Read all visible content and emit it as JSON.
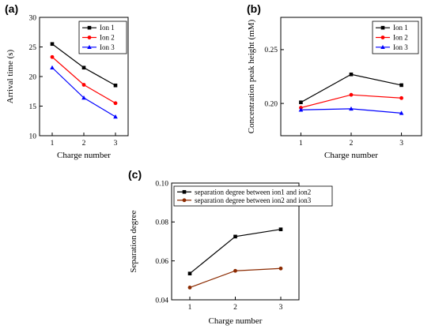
{
  "chart_data": [
    {
      "panel_label": "(a)",
      "type": "line",
      "x": [
        1,
        2,
        3
      ],
      "xticks": [
        "1",
        "2",
        "3"
      ],
      "yticks": [
        "10",
        "15",
        "20",
        "25",
        "30"
      ],
      "xlim": [
        0.6,
        3.4
      ],
      "ylim": [
        10,
        30
      ],
      "xlabel": "Charge number",
      "ylabel": "Arrival time (s)",
      "legend_position": "top-right",
      "series": [
        {
          "name": "Ion 1",
          "color": "#000000",
          "marker": "square",
          "values": [
            25.5,
            21.5,
            18.5
          ]
        },
        {
          "name": "Ion 2",
          "color": "#ff0000",
          "marker": "circle",
          "values": [
            23.3,
            18.6,
            15.5
          ]
        },
        {
          "name": "Ion 3",
          "color": "#0000ff",
          "marker": "triangle",
          "values": [
            21.5,
            16.4,
            13.2
          ]
        }
      ]
    },
    {
      "panel_label": "(b)",
      "type": "line",
      "x": [
        1,
        2,
        3
      ],
      "xticks": [
        "1",
        "2",
        "3"
      ],
      "yticks": [
        "0.20",
        "0.25"
      ],
      "xlim": [
        0.6,
        3.4
      ],
      "ylim": [
        0.17,
        0.28
      ],
      "xlabel": "Charge number",
      "ylabel": "Concentration peak height (mM)",
      "legend_position": "top-right",
      "series": [
        {
          "name": "Ion 1",
          "color": "#000000",
          "marker": "square",
          "values": [
            0.201,
            0.227,
            0.217
          ]
        },
        {
          "name": "Ion 2",
          "color": "#ff0000",
          "marker": "circle",
          "values": [
            0.196,
            0.208,
            0.205
          ]
        },
        {
          "name": "Ion 3",
          "color": "#0000ff",
          "marker": "triangle",
          "values": [
            0.194,
            0.195,
            0.191
          ]
        }
      ]
    },
    {
      "panel_label": "(c)",
      "type": "line",
      "x": [
        1,
        2,
        3
      ],
      "xticks": [
        "1",
        "2",
        "3"
      ],
      "yticks": [
        "0.04",
        "0.06",
        "0.08",
        "0.10"
      ],
      "xlim": [
        0.6,
        3.4
      ],
      "ylim": [
        0.04,
        0.1
      ],
      "xlabel": "Charge number",
      "ylabel": "Separation degree",
      "legend_position": "top-left",
      "series": [
        {
          "name": "separation degree between ion1 and ion2",
          "color": "#000000",
          "marker": "square",
          "values": [
            0.0535,
            0.0725,
            0.0762
          ]
        },
        {
          "name": "separation degree between ion2 and ion3",
          "color": "#8b2a00",
          "marker": "circle",
          "values": [
            0.0463,
            0.0549,
            0.0561
          ]
        }
      ]
    }
  ]
}
